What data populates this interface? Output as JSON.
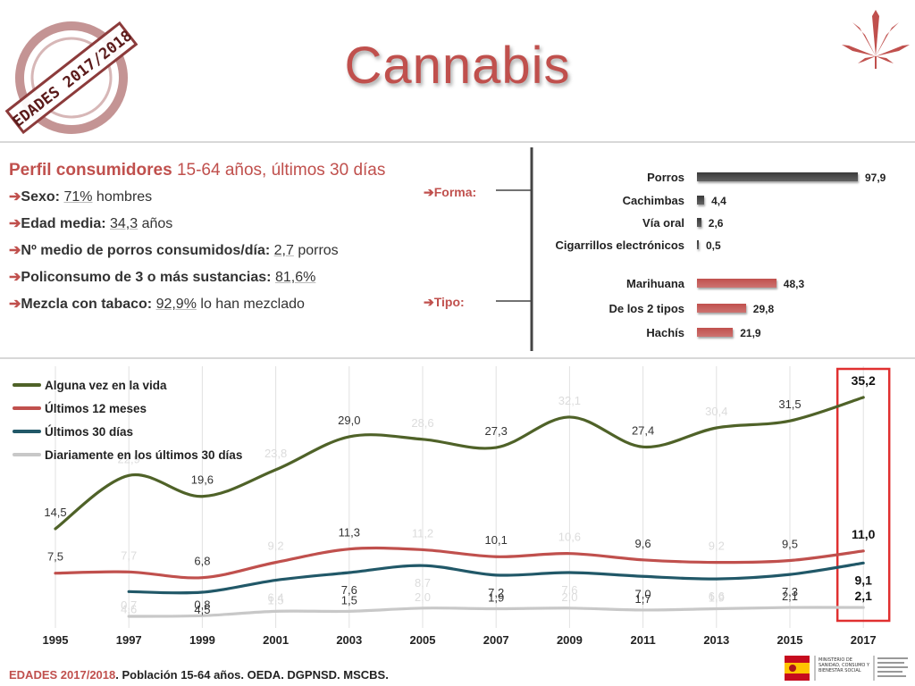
{
  "stamp_text": "EDADES 2017/2018",
  "title": "Cannabis",
  "profile": {
    "heading_bold": "Perfil consumidores",
    "heading_rest": "15-64 años, últimos 30 días",
    "rows": [
      {
        "label": "Sexo:",
        "value": "71%",
        "suffix": "hombres"
      },
      {
        "label": "Edad media:",
        "value": "34,3",
        "suffix": "años"
      },
      {
        "label": "Nº medio de porros consumidos/día:",
        "value": "2,7",
        "suffix": "porros"
      },
      {
        "label": "Policonsumo de 3 o más sustancias:",
        "value": "81,6%",
        "suffix": ""
      },
      {
        "label": "Mezcla con tabaco:",
        "value": "92,9%",
        "suffix": "lo han mezclado"
      }
    ]
  },
  "groups": {
    "forma": "Forma:",
    "tipo": "Tipo:"
  },
  "bars": {
    "forma": [
      {
        "label": "Porros",
        "value": 97.9,
        "text": "97,9"
      },
      {
        "label": "Cachimbas",
        "value": 4.4,
        "text": "4,4"
      },
      {
        "label": "Vía oral",
        "value": 2.6,
        "text": "2,6"
      },
      {
        "label": "Cigarrillos electrónicos",
        "value": 0.5,
        "text": "0,5"
      }
    ],
    "tipo": [
      {
        "label": "Marihuana",
        "value": 48.3,
        "text": "48,3"
      },
      {
        "label": "De los 2 tipos",
        "value": 29.8,
        "text": "29,8"
      },
      {
        "label": "Hachís",
        "value": 21.9,
        "text": "21,9"
      }
    ]
  },
  "colors": {
    "accent": "#c0504d",
    "dark_bar": "#3a3a3a",
    "green": "#4f6228",
    "red": "#c0504d",
    "teal": "#215868",
    "grey": "#c8c8c8"
  },
  "chart_data": {
    "type": "line",
    "x": [
      "1995",
      "1997",
      "1999",
      "2001",
      "2003",
      "2005",
      "2007",
      "2009",
      "2011",
      "2013",
      "2015",
      "2017"
    ],
    "ylim": [
      0,
      38
    ],
    "grid": "vertical",
    "legend": "top-left",
    "highlight": "2017",
    "series": [
      {
        "name": "Alguna vez en la vida",
        "color": "#4f6228",
        "values": [
          14.5,
          22.9,
          19.6,
          23.8,
          29.0,
          28.6,
          27.3,
          32.1,
          27.4,
          30.4,
          31.5,
          35.2
        ],
        "labels": [
          "14,5",
          "22,9",
          "19,6",
          "23,8",
          "29,0",
          "28,6",
          "27,3",
          "32,1",
          "27,4",
          "30,4",
          "31,5",
          "35,2"
        ]
      },
      {
        "name": "Últimos 12 meses",
        "color": "#c0504d",
        "values": [
          7.5,
          7.7,
          6.8,
          9.2,
          11.3,
          11.2,
          10.1,
          10.6,
          9.6,
          9.2,
          9.5,
          11.0
        ],
        "labels": [
          "7,5",
          "7,7",
          "6,8",
          "9,2",
          "11,3",
          "11,2",
          "10,1",
          "10,6",
          "9,6",
          "9,2",
          "9,5",
          "11,0"
        ]
      },
      {
        "name": "Últimos 30 días",
        "color": "#215868",
        "values": [
          null,
          4.6,
          4.5,
          6.4,
          7.6,
          8.7,
          7.2,
          7.6,
          7.0,
          6.6,
          7.3,
          9.1
        ],
        "labels": [
          "",
          "4,6",
          "4,5",
          "6,4",
          "7,6",
          "8,7",
          "7,2",
          "7,6",
          "7,0",
          "6,6",
          "7,3",
          "9,1"
        ]
      },
      {
        "name": "Diariamente en los últimos 30 días",
        "color": "#c8c8c8",
        "values": [
          null,
          0.7,
          0.8,
          1.5,
          1.5,
          2.0,
          1.9,
          2.0,
          1.7,
          1.9,
          2.1,
          2.1
        ],
        "labels": [
          "",
          "0,7",
          "0,8",
          "1,5",
          "1,5",
          "2,0",
          "1,9",
          "2,0",
          "1,7",
          "1,9",
          "2,1",
          "2,1"
        ]
      }
    ]
  },
  "footer": {
    "bold_red": "EDADES 2017/2018",
    "rest": ". Población 15-64 años. OEDA. DGPNSD. MSCBS."
  },
  "ministry_text": "MINISTERIO DE SANIDAD, CONSUMO Y BIENESTAR SOCIAL"
}
